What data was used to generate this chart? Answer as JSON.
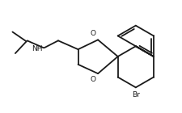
{
  "bg_color": "#ffffff",
  "bond_color": "#1a1a1a",
  "text_color": "#1a1a1a",
  "line_width": 1.3,
  "fig_width": 2.25,
  "fig_height": 1.4,
  "dpi": 100,
  "nh_label": "NH",
  "br_label": "Br",
  "o_label1": "O",
  "o_label2": "O"
}
